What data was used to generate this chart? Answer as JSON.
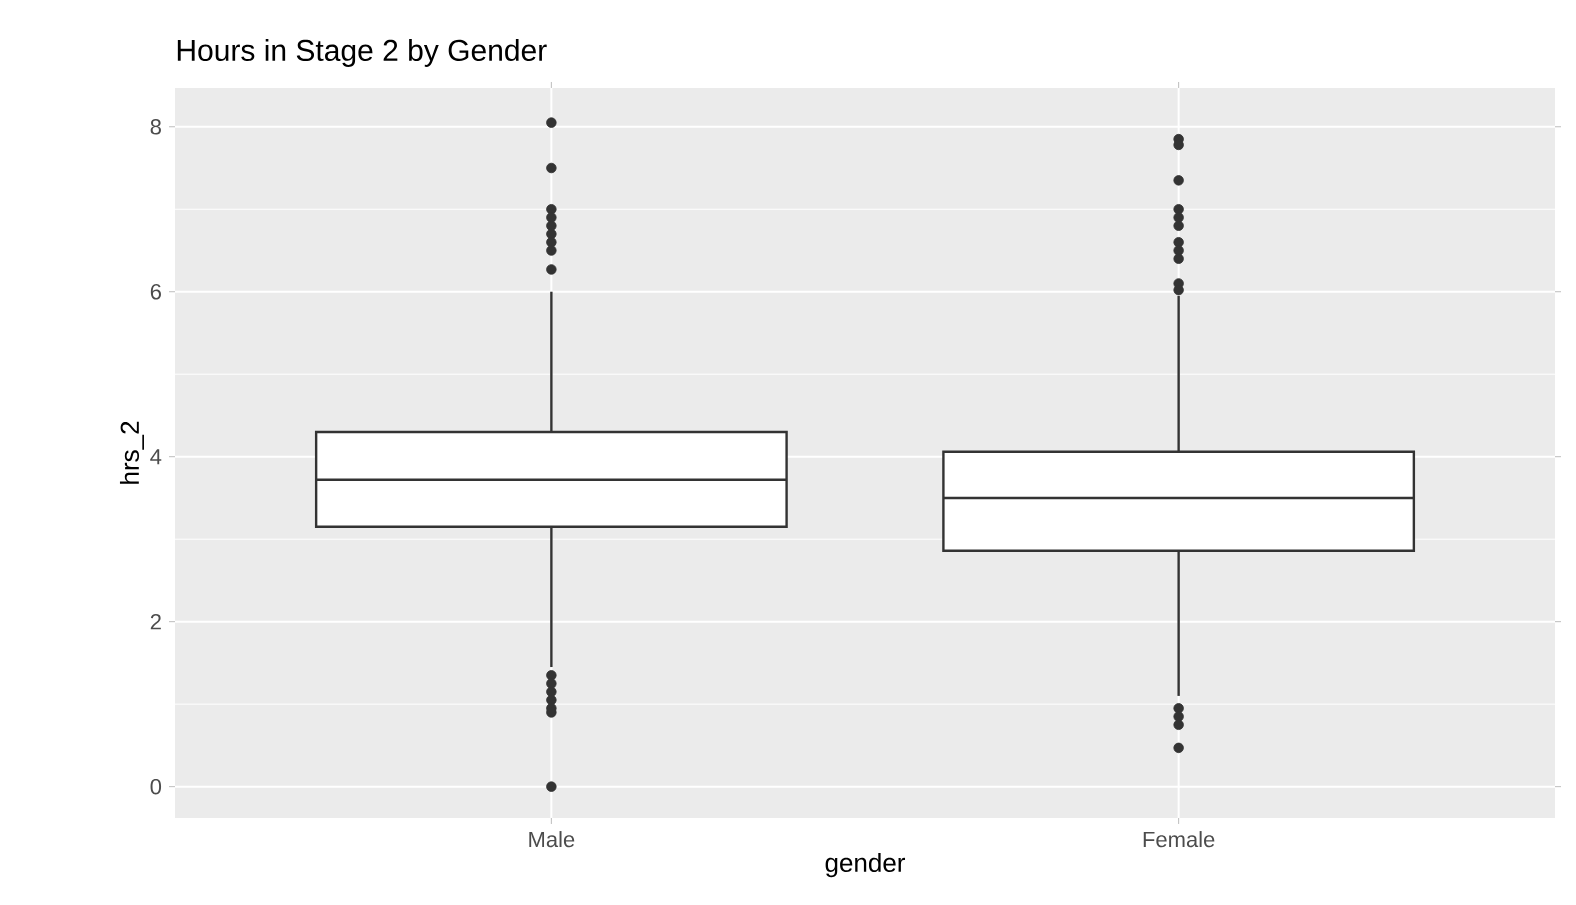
{
  "chart_data": {
    "type": "box",
    "title": "Hours in Stage 2 by Gender",
    "xlabel": "gender",
    "ylabel": "hrs_2",
    "categories": [
      "Male",
      "Female"
    ],
    "boxes": [
      {
        "low": 1.45,
        "q1": 3.15,
        "median": 3.72,
        "q3": 4.3,
        "high": 6.0,
        "outliers": [
          8.05,
          7.5,
          7.0,
          6.9,
          6.8,
          6.7,
          6.6,
          6.5,
          6.27,
          1.35,
          1.25,
          1.15,
          1.05,
          0.95,
          0.9,
          0.0
        ]
      },
      {
        "low": 1.1,
        "q1": 2.86,
        "median": 3.5,
        "q3": 4.06,
        "high": 5.95,
        "outliers": [
          7.85,
          7.78,
          7.35,
          7.0,
          6.9,
          6.8,
          6.6,
          6.5,
          6.4,
          6.1,
          6.02,
          0.95,
          0.85,
          0.75,
          0.47
        ]
      }
    ],
    "color": "#333333",
    "marker": "circle",
    "ylim": [
      -0.38,
      8.47
    ],
    "yticks": [
      0,
      2,
      4,
      6,
      8
    ],
    "grid": true
  }
}
